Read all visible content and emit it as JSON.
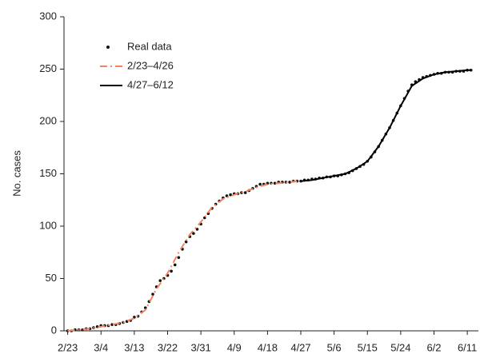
{
  "chart_data": {
    "type": "scatter-line",
    "ylabel": "No. cases",
    "xlim": [
      -1,
      111
    ],
    "ylim": [
      0,
      300
    ],
    "yticks": [
      0,
      50,
      100,
      150,
      200,
      250,
      300
    ],
    "xticks": [
      {
        "value": 0,
        "label": "2/23"
      },
      {
        "value": 9,
        "label": "3/4"
      },
      {
        "value": 18,
        "label": "3/13"
      },
      {
        "value": 27,
        "label": "3/22"
      },
      {
        "value": 36,
        "label": "3/31"
      },
      {
        "value": 45,
        "label": "4/9"
      },
      {
        "value": 54,
        "label": "4/18"
      },
      {
        "value": 63,
        "label": "4/27"
      },
      {
        "value": 72,
        "label": "5/6"
      },
      {
        "value": 81,
        "label": "5/15"
      },
      {
        "value": 90,
        "label": "5/24"
      },
      {
        "value": 99,
        "label": "6/2"
      },
      {
        "value": 108,
        "label": "6/11"
      }
    ],
    "legend": "upper left",
    "series": [
      {
        "name": "Real data",
        "color": "#111111",
        "style": "dots",
        "x": [
          0,
          1,
          2,
          3,
          4,
          5,
          6,
          7,
          8,
          9,
          10,
          11,
          12,
          13,
          14,
          15,
          16,
          17,
          18,
          19,
          20,
          21,
          22,
          23,
          24,
          25,
          26,
          27,
          28,
          29,
          30,
          31,
          32,
          33,
          34,
          35,
          36,
          37,
          38,
          39,
          40,
          41,
          42,
          43,
          44,
          45,
          46,
          47,
          48,
          49,
          50,
          51,
          52,
          53,
          54,
          55,
          56,
          57,
          58,
          59,
          60,
          61,
          62,
          63,
          64,
          65,
          66,
          67,
          68,
          69,
          70,
          71,
          72,
          73,
          74,
          75,
          76,
          77,
          78,
          79,
          80,
          81,
          82,
          83,
          84,
          85,
          86,
          87,
          88,
          89,
          90,
          91,
          92,
          93,
          94,
          95,
          96,
          97,
          98,
          99,
          100,
          101,
          102,
          103,
          104,
          105,
          106,
          107,
          108,
          109
        ],
        "values": [
          0,
          0,
          1,
          1,
          1,
          2,
          2,
          3,
          4,
          5,
          5,
          5,
          6,
          6,
          7,
          8,
          9,
          10,
          13,
          14,
          18,
          22,
          28,
          35,
          42,
          48,
          50,
          53,
          57,
          63,
          70,
          78,
          85,
          90,
          93,
          97,
          102,
          108,
          112,
          117,
          121,
          124,
          127,
          129,
          130,
          131,
          131,
          132,
          132,
          134,
          136,
          138,
          140,
          140,
          141,
          141,
          141,
          142,
          142,
          142,
          142,
          143,
          143,
          143,
          144,
          144,
          145,
          145,
          146,
          146,
          147,
          147,
          148,
          148,
          149,
          150,
          151,
          153,
          155,
          157,
          159,
          162,
          166,
          171,
          176,
          182,
          188,
          194,
          201,
          208,
          215,
          222,
          229,
          235,
          238,
          240,
          242,
          243,
          244,
          245,
          246,
          246,
          247,
          247,
          247,
          248,
          248,
          248,
          249,
          249
        ]
      },
      {
        "name": "2/23–4/26",
        "color": "#f4845f",
        "style": "dashed",
        "x": [
          0,
          3,
          6,
          9,
          12,
          15,
          18,
          21,
          24,
          27,
          30,
          33,
          36,
          39,
          42,
          45,
          48,
          51,
          54,
          57,
          60,
          62
        ],
        "values": [
          0,
          1,
          2,
          4,
          6,
          8,
          12,
          20,
          40,
          55,
          75,
          92,
          104,
          118,
          126,
          130,
          133,
          137,
          140,
          141,
          142,
          143
        ]
      },
      {
        "name": "4/27–6/12",
        "color": "#000000",
        "style": "solid",
        "x": [
          63,
          66,
          69,
          72,
          75,
          78,
          81,
          84,
          87,
          90,
          93,
          96,
          99,
          102,
          105,
          108,
          109
        ],
        "values": [
          143,
          144,
          146,
          148,
          150,
          155,
          162,
          176,
          194,
          215,
          234,
          241,
          245,
          247,
          248,
          249,
          249
        ]
      }
    ]
  }
}
